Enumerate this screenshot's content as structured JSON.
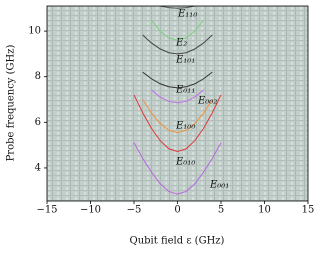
{
  "chart_data": {
    "type": "line",
    "xlabel": "Qubit field ε (GHz)",
    "ylabel": "Probe frequency (GHz)",
    "xlim": [
      -15,
      15
    ],
    "ylim": [
      2.55,
      11.1
    ],
    "xticks": [
      {
        "value": -15,
        "label": "−15"
      },
      {
        "value": -10,
        "label": "−10"
      },
      {
        "value": -5,
        "label": "−5"
      },
      0,
      5,
      10,
      15
    ],
    "yticks": [
      4,
      6,
      8,
      10
    ],
    "x": [
      -5,
      -4,
      -3,
      -2,
      -1,
      0,
      1,
      2,
      3,
      4,
      5
    ],
    "series": [
      {
        "name": "E₁₁₀",
        "color": "#555555",
        "values": [
          null,
          null,
          null,
          11.1,
          11.03,
          11.0,
          11.03,
          11.1,
          null,
          null,
          null
        ]
      },
      {
        "name": "E₂",
        "color": "#7fcf7f",
        "values": [
          null,
          null,
          10.48,
          10.0,
          9.7,
          9.6,
          9.7,
          10.0,
          10.48,
          null,
          null
        ]
      },
      {
        "name": "E₁₀₁",
        "color": "#444444",
        "values": [
          null,
          9.83,
          9.48,
          9.22,
          9.05,
          9.0,
          9.05,
          9.22,
          9.48,
          9.83,
          null
        ]
      },
      {
        "name": "E₀₁₁",
        "color": "#333333",
        "values": [
          null,
          8.2,
          7.91,
          7.69,
          7.56,
          7.51,
          7.56,
          7.69,
          7.91,
          8.2,
          null
        ]
      },
      {
        "name": "E₀₀₂",
        "color": "#c46be8",
        "values": [
          null,
          null,
          7.42,
          7.11,
          6.92,
          6.86,
          6.92,
          7.11,
          7.42,
          null,
          null
        ]
      },
      {
        "name": "E₁₀₀",
        "color": "#f0903a",
        "values": [
          null,
          7.0,
          6.41,
          5.95,
          5.65,
          5.55,
          5.65,
          5.95,
          6.41,
          7.0,
          null
        ]
      },
      {
        "name": "E₀₁₀",
        "color": "#e03838",
        "values": [
          7.2,
          6.42,
          5.74,
          5.2,
          4.84,
          4.72,
          4.84,
          5.2,
          5.74,
          6.42,
          7.2
        ]
      },
      {
        "name": "E₀₀₁",
        "color": "#b868e0",
        "values": [
          5.1,
          4.42,
          3.82,
          3.31,
          2.97,
          2.85,
          2.97,
          3.31,
          3.82,
          4.42,
          5.1
        ]
      }
    ]
  }
}
